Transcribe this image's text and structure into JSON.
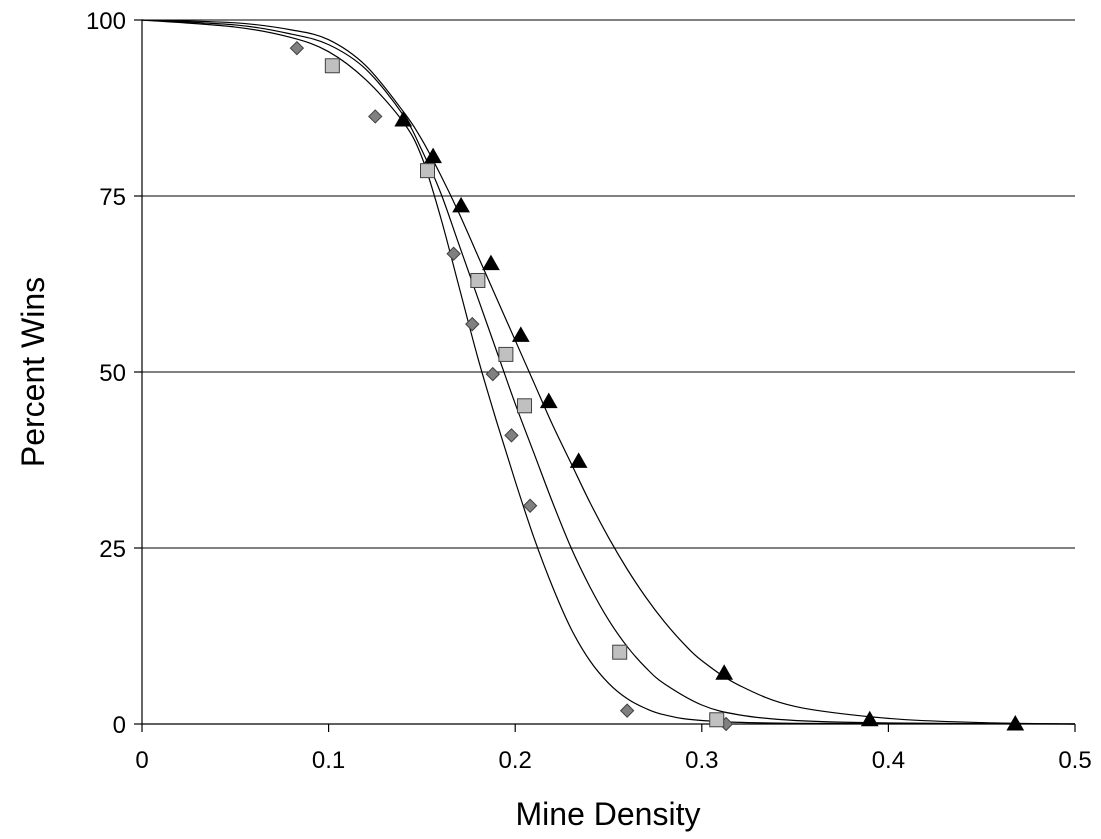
{
  "chart_data": {
    "type": "scatter",
    "title": "",
    "xlabel": "Mine Density",
    "ylabel": "Percent Wins",
    "xlim": [
      0,
      0.5
    ],
    "ylim": [
      0,
      100
    ],
    "xticks": [
      "0",
      "0.1",
      "0.2",
      "0.3",
      "0.4",
      "0.5"
    ],
    "yticks": [
      "0",
      "25",
      "50",
      "75",
      "100"
    ],
    "grid": "horizontal",
    "legend": "none",
    "series": [
      {
        "marker": "diamond",
        "color": "#808080",
        "points": [
          {
            "x": 0.083,
            "y": 96
          },
          {
            "x": 0.125,
            "y": 86.3
          },
          {
            "x": 0.167,
            "y": 66.8
          },
          {
            "x": 0.177,
            "y": 56.8
          },
          {
            "x": 0.188,
            "y": 49.7
          },
          {
            "x": 0.198,
            "y": 41
          },
          {
            "x": 0.208,
            "y": 31
          },
          {
            "x": 0.26,
            "y": 1.9
          },
          {
            "x": 0.313,
            "y": 0
          }
        ],
        "fit_curve": [
          [
            0,
            100
          ],
          [
            0.05,
            99
          ],
          [
            0.08,
            97.5
          ],
          [
            0.1,
            95.5
          ],
          [
            0.12,
            91.5
          ],
          [
            0.14,
            85.5
          ],
          [
            0.15,
            80.5
          ],
          [
            0.16,
            72
          ],
          [
            0.17,
            62
          ],
          [
            0.18,
            52
          ],
          [
            0.19,
            43
          ],
          [
            0.2,
            34.5
          ],
          [
            0.21,
            26.5
          ],
          [
            0.22,
            19.5
          ],
          [
            0.23,
            13.5
          ],
          [
            0.24,
            9
          ],
          [
            0.25,
            5.8
          ],
          [
            0.26,
            3.6
          ],
          [
            0.27,
            2.2
          ],
          [
            0.28,
            1.3
          ],
          [
            0.3,
            0.5
          ],
          [
            0.35,
            0.1
          ],
          [
            0.5,
            0
          ]
        ]
      },
      {
        "marker": "square",
        "color": "#c0c0c0",
        "points": [
          {
            "x": 0.102,
            "y": 93.5
          },
          {
            "x": 0.153,
            "y": 78.6
          },
          {
            "x": 0.18,
            "y": 63
          },
          {
            "x": 0.195,
            "y": 52.5
          },
          {
            "x": 0.205,
            "y": 45.2
          },
          {
            "x": 0.256,
            "y": 10.2
          },
          {
            "x": 0.308,
            "y": 0.6
          }
        ],
        "fit_curve": [
          [
            0,
            100
          ],
          [
            0.05,
            99.3
          ],
          [
            0.08,
            98
          ],
          [
            0.1,
            96.5
          ],
          [
            0.12,
            93
          ],
          [
            0.14,
            86.5
          ],
          [
            0.15,
            81.5
          ],
          [
            0.16,
            75.5
          ],
          [
            0.17,
            68
          ],
          [
            0.18,
            60.5
          ],
          [
            0.19,
            53
          ],
          [
            0.2,
            45.5
          ],
          [
            0.21,
            38.5
          ],
          [
            0.22,
            31.5
          ],
          [
            0.23,
            25
          ],
          [
            0.24,
            19.5
          ],
          [
            0.25,
            14.8
          ],
          [
            0.26,
            11
          ],
          [
            0.27,
            8
          ],
          [
            0.28,
            5.7
          ],
          [
            0.3,
            2.7
          ],
          [
            0.32,
            1.3
          ],
          [
            0.35,
            0.5
          ],
          [
            0.4,
            0.15
          ],
          [
            0.5,
            0
          ]
        ]
      },
      {
        "marker": "triangle",
        "color": "#000000",
        "points": [
          {
            "x": 0.14,
            "y": 85.8
          },
          {
            "x": 0.156,
            "y": 80.6
          },
          {
            "x": 0.171,
            "y": 73.6
          },
          {
            "x": 0.187,
            "y": 65.4
          },
          {
            "x": 0.203,
            "y": 55.2
          },
          {
            "x": 0.218,
            "y": 45.8
          },
          {
            "x": 0.234,
            "y": 37.3
          },
          {
            "x": 0.312,
            "y": 7.2
          },
          {
            "x": 0.39,
            "y": 0.6
          },
          {
            "x": 0.468,
            "y": 0
          }
        ],
        "fit_curve": [
          [
            0,
            100
          ],
          [
            0.05,
            99.6
          ],
          [
            0.08,
            98.6
          ],
          [
            0.1,
            97.2
          ],
          [
            0.12,
            93.5
          ],
          [
            0.14,
            87
          ],
          [
            0.15,
            83
          ],
          [
            0.16,
            78
          ],
          [
            0.17,
            72.5
          ],
          [
            0.18,
            66.5
          ],
          [
            0.19,
            60.5
          ],
          [
            0.2,
            54.5
          ],
          [
            0.21,
            48.5
          ],
          [
            0.22,
            42.5
          ],
          [
            0.23,
            37
          ],
          [
            0.24,
            31.5
          ],
          [
            0.25,
            26.5
          ],
          [
            0.26,
            22
          ],
          [
            0.27,
            18
          ],
          [
            0.28,
            14.5
          ],
          [
            0.29,
            11.5
          ],
          [
            0.3,
            9
          ],
          [
            0.32,
            5.5
          ],
          [
            0.35,
            2.5
          ],
          [
            0.4,
            0.8
          ],
          [
            0.45,
            0.2
          ],
          [
            0.5,
            0
          ]
        ]
      }
    ]
  }
}
